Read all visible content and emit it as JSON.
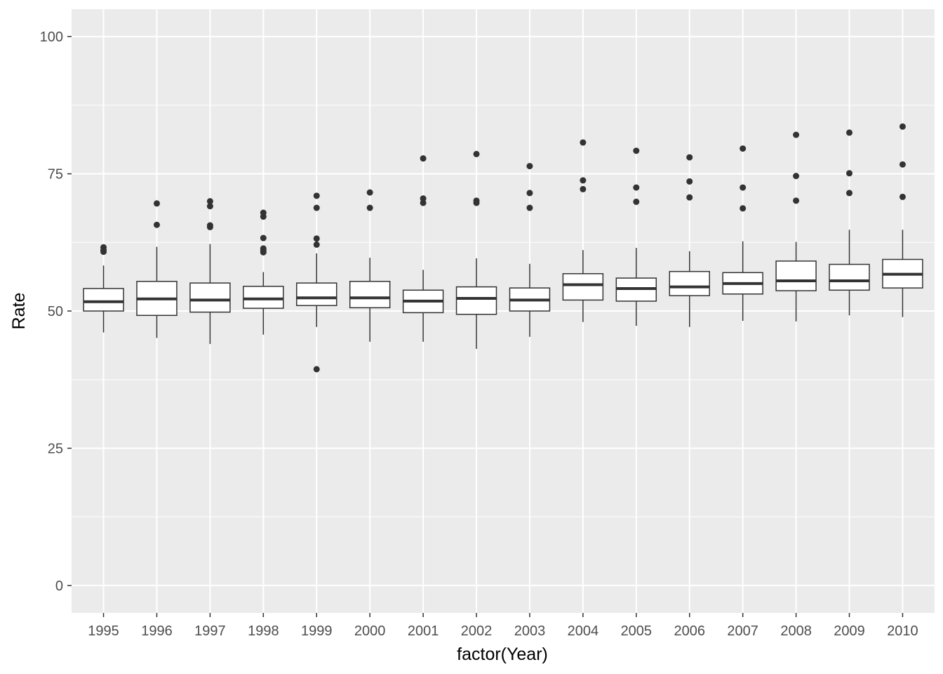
{
  "chart_data": {
    "type": "boxplot",
    "xlabel": "factor(Year)",
    "ylabel": "Rate",
    "ylim": [
      -5,
      105
    ],
    "y_ticks": [
      0,
      25,
      50,
      75,
      100
    ],
    "grid": true,
    "categories": [
      "1995",
      "1996",
      "1997",
      "1998",
      "1999",
      "2000",
      "2001",
      "2002",
      "2003",
      "2004",
      "2005",
      "2006",
      "2007",
      "2008",
      "2009",
      "2010"
    ],
    "boxes": [
      {
        "category": "1995",
        "whisker_low": 46.1,
        "q1": 50.0,
        "median": 51.7,
        "q3": 54.1,
        "whisker_high": 58.3,
        "outliers": [
          61.6,
          61.1,
          60.8
        ]
      },
      {
        "category": "1996",
        "whisker_low": 45.1,
        "q1": 49.2,
        "median": 52.2,
        "q3": 55.4,
        "whisker_high": 61.7,
        "outliers": [
          69.6,
          65.7
        ]
      },
      {
        "category": "1997",
        "whisker_low": 44.0,
        "q1": 49.8,
        "median": 52.0,
        "q3": 55.1,
        "whisker_high": 62.2,
        "outliers": [
          70.0,
          69.1,
          65.6,
          65.3
        ]
      },
      {
        "category": "1998",
        "whisker_low": 45.7,
        "q1": 50.5,
        "median": 52.2,
        "q3": 54.5,
        "whisker_high": 57.1,
        "outliers": [
          67.9,
          67.2,
          63.3,
          61.4,
          61.0,
          60.7
        ]
      },
      {
        "category": "1999",
        "whisker_low": 47.1,
        "q1": 51.0,
        "median": 52.4,
        "q3": 55.1,
        "whisker_high": 60.5,
        "outliers": [
          71.0,
          68.8,
          63.2,
          62.1,
          39.4
        ]
      },
      {
        "category": "2000",
        "whisker_low": 44.4,
        "q1": 50.6,
        "median": 52.4,
        "q3": 55.4,
        "whisker_high": 59.7,
        "outliers": [
          71.6,
          68.8
        ]
      },
      {
        "category": "2001",
        "whisker_low": 44.4,
        "q1": 49.7,
        "median": 51.8,
        "q3": 53.8,
        "whisker_high": 57.5,
        "outliers": [
          77.8,
          70.5,
          69.7
        ]
      },
      {
        "category": "2002",
        "whisker_low": 43.1,
        "q1": 49.4,
        "median": 52.3,
        "q3": 54.4,
        "whisker_high": 59.6,
        "outliers": [
          78.6,
          70.1,
          69.7
        ]
      },
      {
        "category": "2003",
        "whisker_low": 45.3,
        "q1": 50.0,
        "median": 52.0,
        "q3": 54.2,
        "whisker_high": 58.6,
        "outliers": [
          76.4,
          71.5,
          68.8
        ]
      },
      {
        "category": "2004",
        "whisker_low": 48.0,
        "q1": 52.0,
        "median": 54.8,
        "q3": 56.8,
        "whisker_high": 61.1,
        "outliers": [
          80.7,
          73.8,
          72.2
        ]
      },
      {
        "category": "2005",
        "whisker_low": 47.3,
        "q1": 51.8,
        "median": 54.1,
        "q3": 56.0,
        "whisker_high": 61.5,
        "outliers": [
          79.2,
          72.5,
          69.9
        ]
      },
      {
        "category": "2006",
        "whisker_low": 47.1,
        "q1": 52.8,
        "median": 54.4,
        "q3": 57.2,
        "whisker_high": 60.9,
        "outliers": [
          78.0,
          73.6,
          70.7
        ]
      },
      {
        "category": "2007",
        "whisker_low": 48.2,
        "q1": 53.1,
        "median": 55.0,
        "q3": 57.0,
        "whisker_high": 62.7,
        "outliers": [
          79.6,
          72.5,
          68.7
        ]
      },
      {
        "category": "2008",
        "whisker_low": 48.1,
        "q1": 53.7,
        "median": 55.5,
        "q3": 59.1,
        "whisker_high": 62.6,
        "outliers": [
          82.1,
          74.6,
          70.1
        ]
      },
      {
        "category": "2009",
        "whisker_low": 49.2,
        "q1": 53.8,
        "median": 55.5,
        "q3": 58.5,
        "whisker_high": 64.8,
        "outliers": [
          82.5,
          75.1,
          71.5
        ]
      },
      {
        "category": "2010",
        "whisker_low": 48.9,
        "q1": 54.2,
        "median": 56.7,
        "q3": 59.4,
        "whisker_high": 64.8,
        "outliers": [
          83.6,
          76.7,
          70.8
        ]
      }
    ]
  },
  "colors": {
    "panel_background": "#ebebeb",
    "grid_major": "#ffffff",
    "box_fill": "#ffffff",
    "box_stroke": "#333333",
    "outlier": "#333333"
  }
}
